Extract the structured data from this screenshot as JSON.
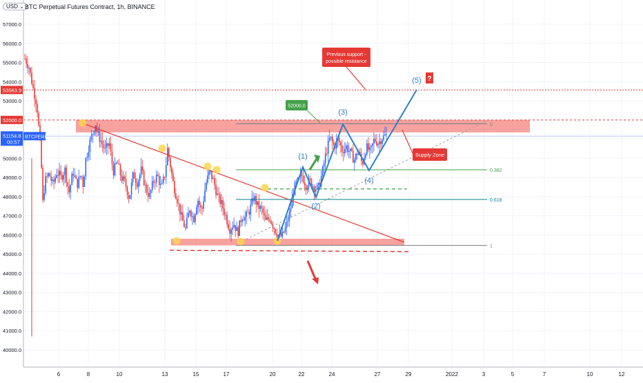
{
  "header": {
    "title": "BTC Perpetual Futures Contract, 1h, BINANCE",
    "currency": "USD"
  },
  "colors": {
    "candle_up": "#2962ff",
    "candle_down": "#e53935",
    "zone": "#f4837d",
    "wave": "#2f7fc4",
    "green": "#43a047",
    "teal": "#00838f",
    "badge_red": "#e53935",
    "badge_blue": "#2962ff",
    "badge_green": "#43a047"
  },
  "chart_data": {
    "type": "candlestick",
    "title": "BTC Perpetual Futures Contract, 1h, BINANCE",
    "ylim": [
      40000,
      57500
    ],
    "x_ticks": [
      "6",
      "8",
      "10",
      "13",
      "15",
      "17",
      "20",
      "22",
      "24",
      "27",
      "29",
      "2022",
      "3",
      "5",
      "7",
      "10",
      "12"
    ],
    "y_ticks": [
      "40000.0",
      "41000.0",
      "42000.0",
      "43000.0",
      "44000.0",
      "45000.0",
      "46000.0",
      "47000.0",
      "48000.0",
      "49000.0",
      "50000.0",
      "51000.0",
      "52000.0",
      "53000.0",
      "54000.0",
      "55000.0",
      "56000.0",
      "57000.0"
    ],
    "y_tick_values": [
      40000,
      41000,
      42000,
      43000,
      44000,
      45000,
      46000,
      47000,
      48000,
      49000,
      50000,
      51000,
      52000,
      53000,
      54000,
      55000,
      56000,
      57000
    ],
    "price_path": [
      [
        0,
        55200
      ],
      [
        1,
        54800
      ],
      [
        2,
        53700
      ],
      [
        3,
        52800
      ],
      [
        4,
        50200
      ],
      [
        4.5,
        47600
      ],
      [
        5,
        48800
      ],
      [
        6,
        49200
      ],
      [
        7,
        48600
      ],
      [
        8,
        49300
      ],
      [
        9,
        49000
      ],
      [
        10,
        49400
      ],
      [
        11,
        48200
      ],
      [
        12,
        49300
      ],
      [
        13,
        48600
      ],
      [
        14,
        49200
      ],
      [
        14.6,
        48500
      ],
      [
        15,
        49800
      ],
      [
        16,
        50700
      ],
      [
        17,
        51400
      ],
      [
        17.5,
        51900
      ],
      [
        18,
        51300
      ],
      [
        19,
        50900
      ],
      [
        20,
        50400
      ],
      [
        21,
        50800
      ],
      [
        22,
        49300
      ],
      [
        23,
        49800
      ],
      [
        24,
        49000
      ],
      [
        25,
        48700
      ],
      [
        26,
        47900
      ],
      [
        27,
        49200
      ],
      [
        28,
        48700
      ],
      [
        29,
        49400
      ],
      [
        30,
        48500
      ],
      [
        31,
        48000
      ],
      [
        32,
        48800
      ],
      [
        33,
        49100
      ],
      [
        34,
        48400
      ],
      [
        35,
        49300
      ],
      [
        35.5,
        50500
      ],
      [
        36,
        49900
      ],
      [
        37,
        48600
      ],
      [
        38,
        47800
      ],
      [
        39,
        46900
      ],
      [
        40,
        46300
      ],
      [
        41,
        47400
      ],
      [
        42,
        46800
      ],
      [
        43,
        47900
      ],
      [
        44,
        47200
      ],
      [
        45,
        48600
      ],
      [
        46,
        49300
      ],
      [
        47,
        48800
      ],
      [
        48,
        48000
      ],
      [
        49,
        47600
      ],
      [
        50,
        47000
      ],
      [
        51,
        46300
      ],
      [
        52,
        46600
      ],
      [
        53,
        46100
      ],
      [
        54,
        47000
      ],
      [
        55,
        46900
      ],
      [
        56,
        47300
      ],
      [
        57,
        48000
      ],
      [
        58,
        47500
      ],
      [
        59,
        47300
      ],
      [
        60,
        46700
      ],
      [
        61,
        46900
      ],
      [
        62,
        46400
      ],
      [
        63,
        46000
      ],
      [
        64,
        45900
      ],
      [
        65,
        46400
      ],
      [
        66,
        47200
      ],
      [
        67,
        48400
      ],
      [
        68,
        48800
      ],
      [
        69,
        49100
      ],
      [
        70,
        48600
      ],
      [
        71,
        48800
      ],
      [
        72,
        48500
      ],
      [
        73,
        48400
      ],
      [
        74,
        49200
      ],
      [
        75,
        50300
      ],
      [
        76,
        51100
      ],
      [
        77,
        50600
      ],
      [
        78,
        51000
      ],
      [
        79,
        50400
      ],
      [
        80,
        50600
      ],
      [
        81,
        50300
      ],
      [
        82,
        49900
      ],
      [
        83,
        50400
      ],
      [
        84,
        49700
      ],
      [
        85,
        50600
      ],
      [
        86,
        50300
      ],
      [
        87,
        51000
      ],
      [
        88,
        50800
      ],
      [
        89,
        51100
      ],
      [
        90,
        51200
      ]
    ],
    "price_path_x_units": "candle index (0-90 from left of plot)",
    "last_price": 51154.8,
    "annotations": {
      "symbol_badge": "BTCPERP",
      "price_badge": "51154.8",
      "countdown": "00:57",
      "level_badge_red": "53563.9",
      "level_badge_52000": "52000.0",
      "callout_52000": "52000.0",
      "callout_resistance_line1": "Previous support -",
      "callout_resistance_line2": "possible resistance",
      "supply_zone_label": "Supply Zone",
      "question": "?",
      "waves": [
        "(1)",
        "(2)",
        "(3)",
        "(4)",
        "(5)"
      ],
      "fib_levels": [
        {
          "label": "0",
          "price": 51800
        },
        {
          "label": "0.382",
          "price": 49400
        },
        {
          "label": "0.618",
          "price": 47850
        },
        {
          "label": "1",
          "price": 45450
        }
      ]
    },
    "levels": {
      "red_dotted": 53563.9,
      "red_dashed": 52000,
      "support_dashed": 45200,
      "green_dashed": 48400,
      "last_price_line": 51154.8
    },
    "zones": [
      {
        "name": "supply",
        "from": 51350,
        "to": 52000
      },
      {
        "name": "demand",
        "from": 45450,
        "to": 45800
      }
    ]
  }
}
